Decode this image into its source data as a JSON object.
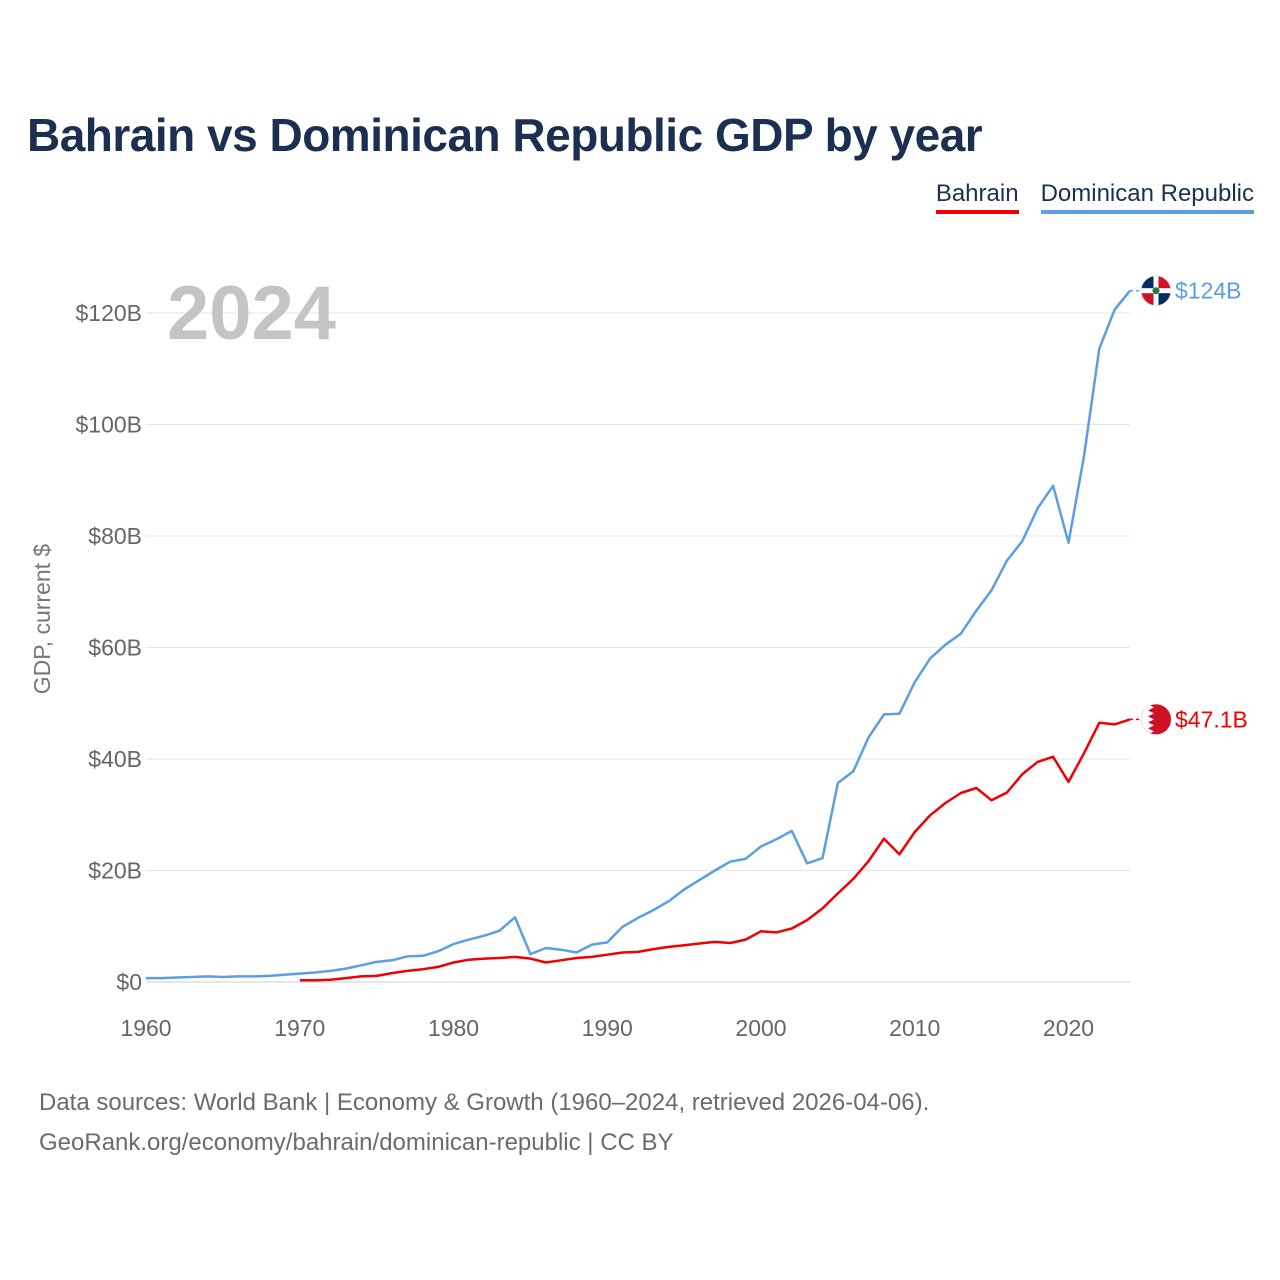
{
  "chart_data": {
    "type": "line",
    "title": "Bahrain vs Dominican Republic GDP by year",
    "ylabel": "GDP, current $",
    "xlabel": "",
    "year_label": "2024",
    "xlim": [
      1960,
      2024
    ],
    "ylim": [
      0,
      130
    ],
    "y_ticks": [
      {
        "value": 0,
        "label": "$0"
      },
      {
        "value": 20,
        "label": "$20B"
      },
      {
        "value": 40,
        "label": "$40B"
      },
      {
        "value": 60,
        "label": "$60B"
      },
      {
        "value": 80,
        "label": "$80B"
      },
      {
        "value": 100,
        "label": "$100B"
      },
      {
        "value": 120,
        "label": "$120B"
      }
    ],
    "x_ticks": [
      {
        "value": 1960,
        "label": "1960"
      },
      {
        "value": 1970,
        "label": "1970"
      },
      {
        "value": 1980,
        "label": "1980"
      },
      {
        "value": 1990,
        "label": "1990"
      },
      {
        "value": 2000,
        "label": "2000"
      },
      {
        "value": 2010,
        "label": "2010"
      },
      {
        "value": 2020,
        "label": "2020"
      }
    ],
    "legend_position": "top-right",
    "series": [
      {
        "name": "Bahrain",
        "color": "#f00000",
        "end_label": "$47.1B",
        "flag": "bahrain-flag-icon",
        "x": [
          1970,
          1971,
          1972,
          1973,
          1974,
          1975,
          1976,
          1977,
          1978,
          1979,
          1980,
          1981,
          1982,
          1983,
          1984,
          1985,
          1986,
          1987,
          1988,
          1989,
          1990,
          1991,
          1992,
          1993,
          1994,
          1995,
          1996,
          1997,
          1998,
          1999,
          2000,
          2001,
          2002,
          2003,
          2004,
          2005,
          2006,
          2007,
          2008,
          2009,
          2010,
          2011,
          2012,
          2013,
          2014,
          2015,
          2016,
          2017,
          2018,
          2019,
          2020,
          2021,
          2022,
          2023,
          2024
        ],
        "values": [
          0.3,
          0.3,
          0.4,
          0.7,
          1.0,
          1.1,
          1.6,
          2.0,
          2.3,
          2.7,
          3.5,
          4.0,
          4.2,
          4.3,
          4.5,
          4.2,
          3.5,
          3.9,
          4.3,
          4.5,
          4.9,
          5.3,
          5.4,
          5.9,
          6.3,
          6.6,
          6.9,
          7.2,
          7.0,
          7.6,
          9.1,
          8.9,
          9.6,
          11.1,
          13.2,
          15.9,
          18.5,
          21.7,
          25.7,
          22.9,
          26.9,
          29.9,
          32.1,
          33.9,
          34.8,
          32.6,
          34.0,
          37.3,
          39.5,
          40.4,
          35.9,
          41.0,
          46.5,
          46.2,
          47.1
        ]
      },
      {
        "name": "Dominican Republic",
        "color": "#5b9fe2",
        "end_label": "$124B",
        "flag": "dominican-republic-flag-icon",
        "x": [
          1960,
          1961,
          1962,
          1963,
          1964,
          1965,
          1966,
          1967,
          1968,
          1969,
          1970,
          1971,
          1972,
          1973,
          1974,
          1975,
          1976,
          1977,
          1978,
          1979,
          1980,
          1981,
          1982,
          1983,
          1984,
          1985,
          1986,
          1987,
          1988,
          1989,
          1990,
          1991,
          1992,
          1993,
          1994,
          1995,
          1996,
          1997,
          1998,
          1999,
          2000,
          2001,
          2002,
          2003,
          2004,
          2005,
          2006,
          2007,
          2008,
          2009,
          2010,
          2011,
          2012,
          2013,
          2014,
          2015,
          2016,
          2017,
          2018,
          2019,
          2020,
          2021,
          2022,
          2023,
          2024
        ],
        "values": [
          0.7,
          0.7,
          0.8,
          0.9,
          1.0,
          0.9,
          1.0,
          1.0,
          1.1,
          1.3,
          1.5,
          1.7,
          2.0,
          2.4,
          3.0,
          3.6,
          3.9,
          4.6,
          4.7,
          5.5,
          6.8,
          7.6,
          8.3,
          9.2,
          11.6,
          5.0,
          6.1,
          5.8,
          5.3,
          6.7,
          7.1,
          9.9,
          11.5,
          12.9,
          14.5,
          16.6,
          18.3,
          20.0,
          21.6,
          22.1,
          24.3,
          25.6,
          27.1,
          21.3,
          22.2,
          35.7,
          37.8,
          43.9,
          48.0,
          48.1,
          53.8,
          58.0,
          60.5,
          62.5,
          66.6,
          70.3,
          75.6,
          79.1,
          85.0,
          89.0,
          78.8,
          94.2,
          113.6,
          120.6,
          124.0
        ]
      }
    ]
  },
  "source": {
    "line1": "Data sources: World Bank | Economy & Growth (1960–2024, retrieved 2026-04-06).",
    "line2": "GeoRank.org/economy/bahrain/dominican-republic | CC BY"
  }
}
